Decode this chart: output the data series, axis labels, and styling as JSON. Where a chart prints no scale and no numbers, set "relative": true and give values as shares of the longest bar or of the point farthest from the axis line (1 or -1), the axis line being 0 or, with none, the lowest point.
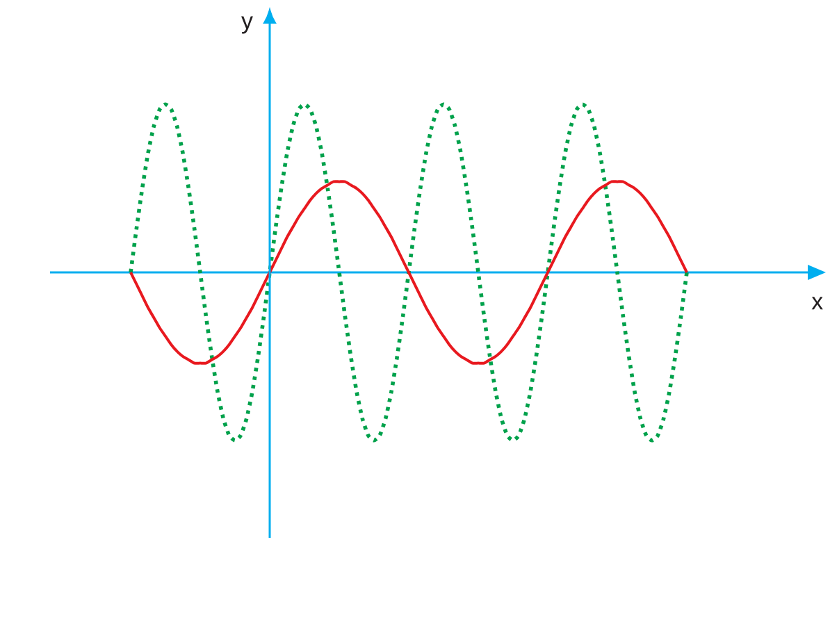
{
  "chart_data": {
    "type": "line",
    "relative": true,
    "ylabel": "y",
    "annotations": [
      "x"
    ],
    "ref_lines": [
      {
        "axis": "y",
        "value": 0,
        "color": "#00aeef",
        "line_style": "solid"
      }
    ],
    "categories": [
      null,
      null,
      null,
      null,
      null,
      null,
      null,
      null,
      null,
      null,
      null,
      null,
      null,
      null,
      null,
      null,
      null,
      null,
      null,
      null,
      null,
      null,
      null,
      null,
      null,
      null,
      null,
      null,
      null,
      null,
      null,
      null,
      null,
      null,
      null,
      null,
      null,
      null,
      null,
      null,
      null,
      null,
      null,
      null,
      null,
      null,
      null,
      null,
      null,
      null,
      null,
      null,
      null,
      null,
      null,
      null,
      null,
      null,
      null,
      null,
      null,
      null,
      null,
      null,
      null,
      null,
      null,
      null,
      null,
      null,
      null,
      null,
      null,
      null,
      null,
      null,
      null,
      null,
      null,
      null,
      null,
      null,
      null,
      null,
      null,
      null,
      null,
      null,
      null,
      null,
      null,
      null,
      null,
      null,
      null,
      null,
      null
    ],
    "series": [
      {
        "color": "#00a14b",
        "line_style": "dotted",
        "values": [
          0,
          0.26,
          0.5,
          0.71,
          0.87,
          0.97,
          1,
          0.97,
          0.87,
          0.71,
          0.5,
          0.26,
          0,
          -0.26,
          -0.5,
          -0.71,
          -0.87,
          -0.97,
          -1,
          -0.97,
          -0.87,
          -0.71,
          -0.5,
          -0.26,
          0,
          0.26,
          0.5,
          0.71,
          0.87,
          0.97,
          1,
          0.97,
          0.87,
          0.71,
          0.5,
          0.26,
          0,
          -0.26,
          -0.5,
          -0.71,
          -0.87,
          -0.97,
          -1,
          -0.97,
          -0.87,
          -0.71,
          -0.5,
          -0.26,
          0,
          0.26,
          0.5,
          0.71,
          0.87,
          0.97,
          1,
          0.97,
          0.87,
          0.71,
          0.5,
          0.26,
          0,
          -0.26,
          -0.5,
          -0.71,
          -0.87,
          -0.97,
          -1,
          -0.97,
          -0.87,
          -0.71,
          -0.5,
          -0.26,
          0,
          0.26,
          0.5,
          0.71,
          0.87,
          0.97,
          1,
          0.97,
          0.87,
          0.71,
          0.5,
          0.26,
          0,
          -0.26,
          -0.5,
          -0.71,
          -0.87,
          -0.97,
          -1,
          -0.97,
          -0.87,
          -0.71,
          -0.5,
          -0.26,
          0
        ]
      },
      {
        "color": "#e8191f",
        "line_style": "solid",
        "values": [
          0,
          -0.07,
          -0.14,
          -0.21,
          -0.27,
          -0.33,
          -0.38,
          -0.43,
          -0.47,
          -0.5,
          -0.52,
          -0.54,
          -0.54,
          -0.54,
          -0.52,
          -0.5,
          -0.47,
          -0.43,
          -0.38,
          -0.33,
          -0.27,
          -0.21,
          -0.14,
          -0.07,
          0,
          0.07,
          0.14,
          0.21,
          0.27,
          0.33,
          0.38,
          0.43,
          0.47,
          0.5,
          0.52,
          0.54,
          0.54,
          0.54,
          0.52,
          0.5,
          0.47,
          0.43,
          0.38,
          0.33,
          0.27,
          0.21,
          0.14,
          0.07,
          0,
          -0.07,
          -0.14,
          -0.21,
          -0.27,
          -0.33,
          -0.38,
          -0.43,
          -0.47,
          -0.5,
          -0.52,
          -0.54,
          -0.54,
          -0.54,
          -0.52,
          -0.5,
          -0.47,
          -0.43,
          -0.38,
          -0.33,
          -0.27,
          -0.21,
          -0.14,
          -0.07,
          0,
          0.07,
          0.14,
          0.21,
          0.27,
          0.33,
          0.38,
          0.43,
          0.47,
          0.5,
          0.52,
          0.54,
          0.54,
          0.54,
          0.52,
          0.5,
          0.47,
          0.43,
          0.38,
          0.33,
          0.27,
          0.21,
          0.14,
          0.07,
          0
        ]
      }
    ]
  }
}
